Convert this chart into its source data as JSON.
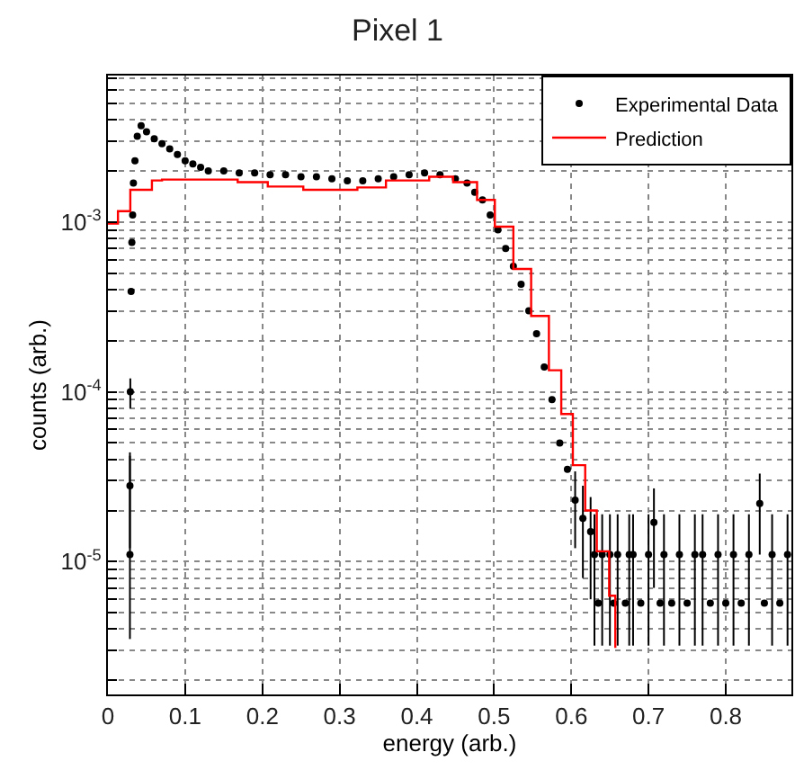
{
  "chart_data": {
    "type": "scatter",
    "title": "Pixel 1",
    "xlabel": "energy (arb.)",
    "ylabel": "counts (arb.)",
    "log": "y",
    "grid": true,
    "legend": "top right",
    "marker": "circle",
    "xlim": [
      0,
      0.885
    ],
    "xticks": [
      0,
      0.1,
      0.2,
      0.3,
      0.4,
      0.5,
      0.6,
      0.7,
      0.8
    ],
    "ylim": [
      1.65e-06,
      0.0073
    ],
    "yticks": [
      {
        "value": 2e-06,
        "label": null
      },
      {
        "value": 3e-06,
        "label": null
      },
      {
        "value": 4e-06,
        "label": null
      },
      {
        "value": 5e-06,
        "label": null
      },
      {
        "value": 6e-06,
        "label": null
      },
      {
        "value": 7e-06,
        "label": null
      },
      {
        "value": 8e-06,
        "label": null
      },
      {
        "value": 9e-06,
        "label": null
      },
      {
        "value": 1e-05,
        "label": "10$^{-5}$"
      },
      {
        "value": 2e-05,
        "label": null
      },
      {
        "value": 3e-05,
        "label": null
      },
      {
        "value": 4e-05,
        "label": null
      },
      {
        "value": 5e-05,
        "label": null
      },
      {
        "value": 6e-05,
        "label": null
      },
      {
        "value": 7e-05,
        "label": null
      },
      {
        "value": 8e-05,
        "label": null
      },
      {
        "value": 9e-05,
        "label": null
      },
      {
        "value": 0.0001,
        "label": "10$^{-4}$"
      },
      {
        "value": 0.0002,
        "label": null
      },
      {
        "value": 0.0003,
        "label": null
      },
      {
        "value": 0.0004,
        "label": null
      },
      {
        "value": 0.0005,
        "label": null
      },
      {
        "value": 0.0006,
        "label": null
      },
      {
        "value": 0.0007,
        "label": null
      },
      {
        "value": 0.0008,
        "label": null
      },
      {
        "value": 0.0009,
        "label": null
      },
      {
        "value": 0.001,
        "label": "10$^{-3}$"
      },
      {
        "value": 0.002,
        "label": null
      },
      {
        "value": 0.003,
        "label": null
      },
      {
        "value": 0.004,
        "label": null
      },
      {
        "value": 0.005,
        "label": null
      },
      {
        "value": 0.006,
        "label": null
      },
      {
        "value": 0.007,
        "label": null
      }
    ],
    "series": [
      {
        "name": "Experimental Data",
        "color": "#000000",
        "x": [
          0.0285,
          0.0285,
          0.029,
          0.03,
          0.031,
          0.032,
          0.033,
          0.035,
          0.038,
          0.043,
          0.05,
          0.06,
          0.07,
          0.08,
          0.09,
          0.1,
          0.11,
          0.12,
          0.13,
          0.15,
          0.17,
          0.19,
          0.21,
          0.23,
          0.25,
          0.27,
          0.29,
          0.31,
          0.33,
          0.35,
          0.37,
          0.39,
          0.41,
          0.43,
          0.45,
          0.465,
          0.475,
          0.485,
          0.495,
          0.505,
          0.515,
          0.525,
          0.535,
          0.545,
          0.555,
          0.565,
          0.575,
          0.585,
          0.595,
          0.605,
          0.615,
          0.625,
          0.63,
          0.635,
          0.64,
          0.65,
          0.655,
          0.66,
          0.67,
          0.675,
          0.68,
          0.69,
          0.7,
          0.707,
          0.715,
          0.72,
          0.73,
          0.74,
          0.75,
          0.76,
          0.77,
          0.78,
          0.79,
          0.8,
          0.81,
          0.82,
          0.83,
          0.844,
          0.85,
          0.86,
          0.87,
          0.88
        ],
        "values": [
          1.1e-05,
          2.8e-05,
          0.0001,
          0.00039,
          0.00076,
          0.0011,
          0.0017,
          0.0023,
          0.0032,
          0.0037,
          0.0034,
          0.0031,
          0.0029,
          0.0027,
          0.0025,
          0.0023,
          0.0022,
          0.0021,
          0.002,
          0.002,
          0.00195,
          0.00195,
          0.0019,
          0.0019,
          0.00185,
          0.00185,
          0.0018,
          0.00175,
          0.00175,
          0.0018,
          0.00185,
          0.0019,
          0.00195,
          0.0019,
          0.0018,
          0.0017,
          0.0015,
          0.00135,
          0.0011,
          0.0009,
          0.0007,
          0.00055,
          0.00043,
          0.0003,
          0.00022,
          0.00014,
          9e-05,
          5e-05,
          3.5e-05,
          2.3e-05,
          1.8e-05,
          1.5e-05,
          1.1e-05,
          5.7e-06,
          1.1e-05,
          1.1e-05,
          5.7e-06,
          1.1e-05,
          5.7e-06,
          1.1e-05,
          1.1e-05,
          5.7e-06,
          1.1e-05,
          1.7e-05,
          5.7e-06,
          1.1e-05,
          5.7e-06,
          1.1e-05,
          5.7e-06,
          1.1e-05,
          1.1e-05,
          5.7e-06,
          1.1e-05,
          5.7e-06,
          1.1e-05,
          5.7e-06,
          1.1e-05,
          2.2e-05,
          5.7e-06,
          1.1e-05,
          5.7e-06,
          1.1e-05
        ],
        "errors": [
          [
            3.5e-06,
            4.2e-05
          ],
          [
            1.2e-05,
            4.4e-05
          ],
          [
            8e-05,
            0.00012
          ],
          null,
          null,
          null,
          null,
          null,
          null,
          null,
          null,
          null,
          null,
          null,
          null,
          null,
          null,
          null,
          null,
          null,
          null,
          null,
          null,
          null,
          null,
          null,
          null,
          null,
          null,
          null,
          null,
          null,
          null,
          null,
          null,
          null,
          null,
          null,
          null,
          null,
          null,
          null,
          null,
          null,
          null,
          null,
          null,
          null,
          null,
          [
            1.2e-05,
            3.4e-05
          ],
          [
            8e-06,
            2.8e-05
          ],
          [
            6e-06,
            2.4e-05
          ],
          [
            3.2e-06,
            1.9e-05
          ],
          null,
          [
            3.2e-06,
            1.9e-05
          ],
          [
            3.2e-06,
            1.9e-05
          ],
          null,
          [
            3.2e-06,
            1.9e-05
          ],
          null,
          [
            3.2e-06,
            1.9e-05
          ],
          [
            3.2e-06,
            1.9e-05
          ],
          null,
          [
            3.2e-06,
            1.9e-05
          ],
          [
            7e-06,
            2.7e-05
          ],
          null,
          [
            3.2e-06,
            1.9e-05
          ],
          null,
          [
            3.2e-06,
            1.9e-05
          ],
          null,
          [
            3.2e-06,
            1.9e-05
          ],
          [
            3.2e-06,
            1.9e-05
          ],
          null,
          [
            3.2e-06,
            1.9e-05
          ],
          null,
          [
            3.2e-06,
            1.9e-05
          ],
          null,
          [
            3.2e-06,
            1.9e-05
          ],
          [
            1.1e-05,
            3.3e-05
          ],
          null,
          [
            3.2e-06,
            1.9e-05
          ],
          null,
          [
            3.2e-06,
            1.9e-05
          ]
        ]
      },
      {
        "name": "Prediction",
        "type": "step",
        "color": "#ff0000",
        "marker": "none",
        "x": [
          0,
          0.013,
          0.029,
          0.057,
          0.07,
          0.168,
          0.207,
          0.253,
          0.29,
          0.323,
          0.36,
          0.416,
          0.447,
          0.478,
          0.501,
          0.525,
          0.548,
          0.571,
          0.587,
          0.602,
          0.618,
          0.633,
          0.649,
          0.657
        ],
        "values": [
          0.00098,
          0.00116,
          0.00155,
          0.00176,
          0.00178,
          0.00172,
          0.00162,
          0.00155,
          0.00155,
          0.0016,
          0.00176,
          0.00185,
          0.00172,
          0.00135,
          0.00094,
          0.00053,
          0.00028,
          0.000134,
          7.4e-05,
          3.7e-05,
          2e-05,
          1.15e-05,
          6.3e-06,
          3.1e-06
        ]
      }
    ]
  }
}
